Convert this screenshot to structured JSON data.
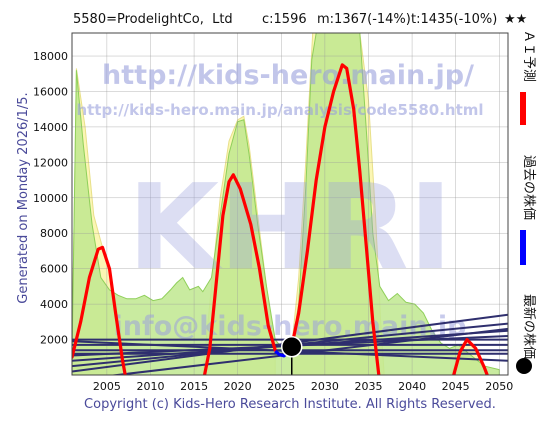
{
  "header": {
    "title": "5580=ProdelightCo,  Ltd",
    "current": "c:1596",
    "mid": "m:1367(-14%)",
    "target": "t:1435(-10%)",
    "rating": "★★"
  },
  "side_label": "Generated on Monday 2026/1/5.",
  "footer": "Copyright (c) Kids-Hero Research Institute. All Rights Reserved.",
  "watermarks": {
    "url_main": "http://kids-hero.main.jp/",
    "url_analysis": "http://kids-hero.main.jp/analysis/code5580.html",
    "logo": "KHRI",
    "email": "info@kids-hero.main.jp"
  },
  "legend": {
    "ai_forecast": "ＡＩ予測",
    "past_price": "過去の株価",
    "latest_price": "最新の株価",
    "ai_color": "#ff0000",
    "past_color": "#0000ff",
    "latest_color": "#000000"
  },
  "chart_data": {
    "type": "line",
    "xlim": [
      2001,
      2051
    ],
    "ylim": [
      0,
      19300
    ],
    "x_ticks": [
      "2005",
      "2010",
      "2015",
      "2020",
      "2025",
      "2030",
      "2035",
      "2040",
      "2045",
      "2050"
    ],
    "y_ticks": [
      "2000",
      "4000",
      "6000",
      "8000",
      "10000",
      "12000",
      "14000",
      "16000",
      "18000"
    ],
    "grid": true,
    "latest_point": {
      "x": 2026.2,
      "y": 1596
    },
    "past_price": [
      [
        2024.3,
        1350
      ],
      [
        2024.8,
        1150
      ],
      [
        2025.3,
        1080
      ],
      [
        2025.8,
        1300
      ],
      [
        2026.2,
        1596
      ]
    ],
    "ai_forecast": [
      [
        [
          2001.0,
          1000
        ],
        [
          2002.0,
          3000
        ],
        [
          2003.0,
          5500
        ],
        [
          2004.0,
          7100
        ],
        [
          2004.5,
          7200
        ],
        [
          2005.3,
          6000
        ],
        [
          2006.0,
          3500
        ],
        [
          2006.8,
          800
        ],
        [
          2007.3,
          -500
        ]
      ],
      [
        [
          2016.0,
          -500
        ],
        [
          2016.8,
          1500
        ],
        [
          2017.5,
          5000
        ],
        [
          2018.3,
          9000
        ],
        [
          2019.0,
          10900
        ],
        [
          2019.5,
          11300
        ],
        [
          2020.3,
          10500
        ],
        [
          2021.5,
          8500
        ],
        [
          2022.5,
          6000
        ],
        [
          2023.5,
          2800
        ],
        [
          2024.3,
          1400
        ]
      ],
      [
        [
          2026.2,
          1596
        ],
        [
          2027.0,
          3500
        ],
        [
          2028.0,
          7000
        ],
        [
          2029.0,
          11000
        ],
        [
          2030.0,
          14000
        ],
        [
          2031.0,
          16000
        ],
        [
          2032.0,
          17500
        ],
        [
          2032.5,
          17300
        ],
        [
          2033.3,
          15000
        ],
        [
          2034.0,
          11500
        ],
        [
          2034.8,
          7000
        ],
        [
          2035.5,
          3000
        ],
        [
          2036.3,
          -500
        ]
      ],
      [
        [
          2044.5,
          -500
        ],
        [
          2045.5,
          1300
        ],
        [
          2046.3,
          2000
        ],
        [
          2047.3,
          1500
        ],
        [
          2048.3,
          400
        ],
        [
          2049.0,
          -500
        ]
      ]
    ],
    "trend_lines": [
      [
        [
          2001,
          200
        ],
        [
          2051,
          3400
        ]
      ],
      [
        [
          2001,
          500
        ],
        [
          2051,
          2900
        ]
      ],
      [
        [
          2001,
          800
        ],
        [
          2051,
          2500
        ]
      ],
      [
        [
          2001,
          1100
        ],
        [
          2051,
          2200
        ]
      ],
      [
        [
          2001,
          1700
        ],
        [
          2051,
          1700
        ]
      ],
      [
        [
          2001,
          2000
        ],
        [
          2051,
          2000
        ]
      ],
      [
        [
          2001,
          1400
        ],
        [
          2051,
          1400
        ]
      ],
      [
        [
          2001,
          1200
        ],
        [
          2051,
          1200
        ]
      ],
      [
        [
          2001,
          -300
        ],
        [
          2051,
          2600
        ]
      ],
      [
        [
          2001,
          1900
        ],
        [
          2051,
          800
        ]
      ]
    ],
    "yellow_band": [
      [
        [
          2001.0,
          1000
        ],
        [
          2001.5,
          17300
        ],
        [
          2002.5,
          14000
        ],
        [
          2003.5,
          9000
        ],
        [
          2004.5,
          7200
        ],
        [
          2005.5,
          5500
        ],
        [
          2006.5,
          2500
        ],
        [
          2007.3,
          0
        ]
      ],
      [
        [
          2016.0,
          0
        ],
        [
          2017.0,
          5000
        ],
        [
          2018.0,
          10000
        ],
        [
          2019.0,
          13200
        ],
        [
          2020.0,
          14400
        ],
        [
          2020.7,
          14600
        ],
        [
          2021.3,
          13000
        ],
        [
          2022.3,
          9000
        ],
        [
          2023.3,
          5000
        ],
        [
          2024.3,
          1500
        ]
      ],
      [
        [
          2026.2,
          1596
        ],
        [
          2027.0,
          5500
        ],
        [
          2027.8,
          12000
        ],
        [
          2028.6,
          19300
        ],
        [
          2034.0,
          19300
        ],
        [
          2035.0,
          15500
        ],
        [
          2035.8,
          9000
        ],
        [
          2036.4,
          3000
        ],
        [
          2036.8,
          0
        ]
      ],
      [
        [
          2044.5,
          0
        ],
        [
          2045.5,
          1500
        ],
        [
          2046.3,
          2100
        ],
        [
          2047.5,
          1400
        ],
        [
          2048.5,
          0
        ]
      ]
    ],
    "green_area": [
      [
        2001.0,
        1000
      ],
      [
        2001.5,
        17200
      ],
      [
        2002.3,
        13000
      ],
      [
        2003.3,
        8500
      ],
      [
        2004.3,
        5500
      ],
      [
        2005.3,
        4800
      ],
      [
        2006.3,
        4500
      ],
      [
        2007.3,
        4300
      ],
      [
        2008.3,
        4300
      ],
      [
        2009.3,
        4500
      ],
      [
        2010.3,
        4200
      ],
      [
        2011.3,
        4300
      ],
      [
        2012.3,
        4800
      ],
      [
        2013.0,
        5200
      ],
      [
        2013.7,
        5500
      ],
      [
        2014.5,
        4800
      ],
      [
        2015.5,
        5000
      ],
      [
        2016.0,
        4700
      ],
      [
        2017.0,
        5500
      ],
      [
        2018.0,
        9000
      ],
      [
        2019.0,
        12500
      ],
      [
        2020.0,
        14300
      ],
      [
        2020.7,
        14400
      ],
      [
        2021.3,
        12500
      ],
      [
        2022.3,
        8500
      ],
      [
        2023.3,
        5000
      ],
      [
        2024.3,
        2000
      ],
      [
        2025.3,
        1400
      ],
      [
        2026.2,
        1600
      ],
      [
        2027.0,
        4000
      ],
      [
        2027.8,
        10500
      ],
      [
        2028.5,
        17800
      ],
      [
        2029.0,
        19300
      ],
      [
        2034.0,
        19300
      ],
      [
        2034.8,
        13500
      ],
      [
        2035.5,
        8000
      ],
      [
        2036.3,
        5000
      ],
      [
        2037.3,
        4200
      ],
      [
        2038.3,
        4600
      ],
      [
        2039.3,
        4100
      ],
      [
        2040.3,
        4000
      ],
      [
        2041.3,
        3500
      ],
      [
        2042.3,
        2500
      ],
      [
        2043.3,
        1800
      ],
      [
        2044.3,
        1500
      ],
      [
        2045.3,
        1700
      ],
      [
        2046.3,
        1300
      ],
      [
        2047.3,
        900
      ],
      [
        2048.3,
        500
      ],
      [
        2050.0,
        300
      ]
    ]
  }
}
